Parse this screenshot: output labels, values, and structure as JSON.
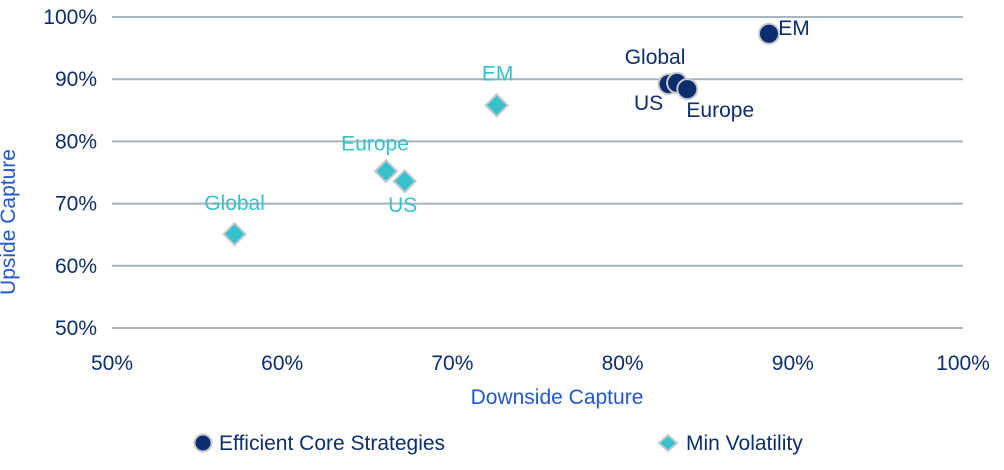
{
  "chart_data": {
    "type": "scatter",
    "title": "",
    "xlabel": "Downside Capture",
    "ylabel": "Upside Capture",
    "xlim": [
      50,
      100
    ],
    "ylim": [
      50,
      100
    ],
    "x_ticks": [
      {
        "value": 50,
        "label": "50%"
      },
      {
        "value": 60,
        "label": "60%"
      },
      {
        "value": 70,
        "label": "70%"
      },
      {
        "value": 80,
        "label": "80%"
      },
      {
        "value": 90,
        "label": "90%"
      },
      {
        "value": 100,
        "label": "100%"
      }
    ],
    "y_ticks": [
      {
        "value": 50,
        "label": "50%"
      },
      {
        "value": 60,
        "label": "60%"
      },
      {
        "value": 70,
        "label": "70%"
      },
      {
        "value": 80,
        "label": "80%"
      },
      {
        "value": 90,
        "label": "90%"
      },
      {
        "value": 100,
        "label": "100%"
      }
    ],
    "grid": "horizontal-only",
    "legend_position": "bottom",
    "series": [
      {
        "name": "Efficient Core Strategies",
        "marker": "circle",
        "color": "#0d2e6e",
        "marker_outline": "#c6c9cc",
        "points": [
          {
            "label": "US",
            "x": 82.7,
            "y": 89.2,
            "label_dx": -20,
            "label_dy": 19
          },
          {
            "label": "Global",
            "x": 83.2,
            "y": 89.4,
            "label_dx": -22,
            "label_dy": -26
          },
          {
            "label": "Europe",
            "x": 83.8,
            "y": 88.4,
            "label_dx": 33,
            "label_dy": 21
          },
          {
            "label": "EM",
            "x": 88.6,
            "y": 97.3,
            "label_dx": 25,
            "label_dy": -6
          }
        ]
      },
      {
        "name": "Min Volatility",
        "marker": "diamond",
        "color": "#35c2cc",
        "marker_outline": "#c6c9cc",
        "points": [
          {
            "label": "Global",
            "x": 57.2,
            "y": 65.1,
            "label_dx": 0,
            "label_dy": -31
          },
          {
            "label": "Europe",
            "x": 66.1,
            "y": 75.2,
            "label_dx": -11,
            "label_dy": -28
          },
          {
            "label": "US",
            "x": 67.2,
            "y": 73.6,
            "label_dx": -2,
            "label_dy": 24
          },
          {
            "label": "EM",
            "x": 72.6,
            "y": 85.8,
            "label_dx": 1,
            "label_dy": -32
          }
        ]
      }
    ]
  },
  "colors": {
    "tick_label": "#0d2e6e",
    "axis_title": "#2158cf",
    "gridline": "#aab4be",
    "background": "#ffffff"
  }
}
